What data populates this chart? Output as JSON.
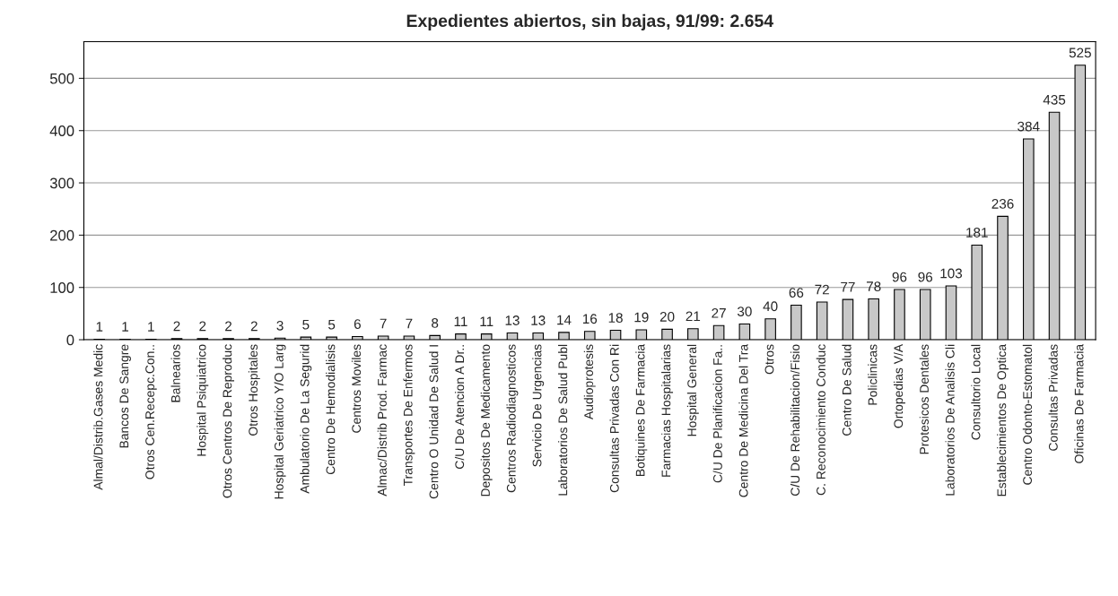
{
  "chart_data": {
    "type": "bar",
    "title": "Expedientes abiertos, sin bajas, 91/99: 2.654",
    "categories": [
      "Almal/Distrib.Gases Medic",
      "Bancos De Sangre",
      "Otros Cen.Recepc.Con..",
      "Balnearios",
      "Hospital Psiquiatrico",
      "Otros Centros De Reproduc",
      "Otros Hospitales",
      "Hospital Geriatrico Y/O Larg",
      "Ambulatorio De La Segurid",
      "Centro De Hemodialisis",
      "Centros Moviles",
      "Almac/Distrib Prod. Farmac",
      "Transportes De Enfermos",
      "Centro O Unidad De Salud I",
      "C/U De Atencion A Dr..",
      "Depositos De Medicamento",
      "Centros Radiodiagnosticos",
      "Servicio De Urgencias",
      "Laboratorios De Salud Publ",
      "Audioprotesis",
      "Consultas Privadas Con Ri",
      "Botiquines De Farmacia",
      "Farmacias Hospitalarias",
      "Hospital General",
      "C/U De Planificacion Fa..",
      "Centro De Medicina Del Tra",
      "Otros",
      "C/U De Rehabilitacion/Fisio",
      "C. Reconocimiento Conduc",
      "Centro De Salud",
      "Policlinicas",
      "Ortopedias V/A",
      "Protesicos Dentales",
      "Laboratorios De Analisis Cli",
      "Consultorio Local",
      "Establecimientos De Optica",
      "Centro Odonto-Estomatol",
      "Consultas Privadas",
      "Oficinas De Farmacia"
    ],
    "values": [
      1,
      1,
      1,
      2,
      2,
      2,
      2,
      3,
      5,
      5,
      6,
      7,
      7,
      8,
      11,
      11,
      13,
      13,
      14,
      16,
      18,
      19,
      20,
      21,
      27,
      30,
      40,
      66,
      72,
      77,
      78,
      96,
      96,
      103,
      181,
      236,
      384,
      435,
      525
    ],
    "color": "#c8c8c8",
    "data_labels": true,
    "ylim": [
      0,
      570
    ],
    "yticks": [
      0,
      100,
      200,
      300,
      400,
      500
    ],
    "grid": "y"
  }
}
